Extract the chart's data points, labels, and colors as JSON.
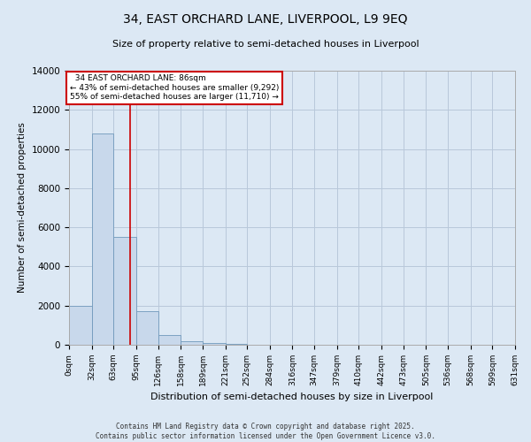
{
  "title_line1": "34, EAST ORCHARD LANE, LIVERPOOL, L9 9EQ",
  "title_line2": "Size of property relative to semi-detached houses in Liverpool",
  "xlabel": "Distribution of semi-detached houses by size in Liverpool",
  "ylabel": "Number of semi-detached properties",
  "footer_line1": "Contains HM Land Registry data © Crown copyright and database right 2025.",
  "footer_line2": "Contains public sector information licensed under the Open Government Licence v3.0.",
  "property_size": 86,
  "property_label": "34 EAST ORCHARD LANE: 86sqm",
  "pct_smaller": 43,
  "pct_larger": 55,
  "n_smaller": 9292,
  "n_larger": 11710,
  "bin_labels": [
    "0sqm",
    "32sqm",
    "63sqm",
    "95sqm",
    "126sqm",
    "158sqm",
    "189sqm",
    "221sqm",
    "252sqm",
    "284sqm",
    "316sqm",
    "347sqm",
    "379sqm",
    "410sqm",
    "442sqm",
    "473sqm",
    "505sqm",
    "536sqm",
    "568sqm",
    "599sqm",
    "631sqm"
  ],
  "bin_edges": [
    0,
    32,
    63,
    95,
    126,
    158,
    189,
    221,
    252,
    284,
    316,
    347,
    379,
    410,
    442,
    473,
    505,
    536,
    568,
    599,
    631
  ],
  "bar_heights": [
    2000,
    10800,
    5500,
    1700,
    500,
    200,
    100,
    60,
    0,
    0,
    0,
    0,
    0,
    0,
    0,
    0,
    0,
    0,
    0,
    0
  ],
  "bar_color": "#c8d8eb",
  "bar_edge_color": "#7099bb",
  "grid_color": "#b8c8da",
  "background_color": "#dce8f4",
  "fig_background_color": "#dce8f4",
  "vline_color": "#cc0000",
  "annotation_box_color": "#cc0000",
  "ylim": [
    0,
    14000
  ],
  "yticks": [
    0,
    2000,
    4000,
    6000,
    8000,
    10000,
    12000,
    14000
  ]
}
